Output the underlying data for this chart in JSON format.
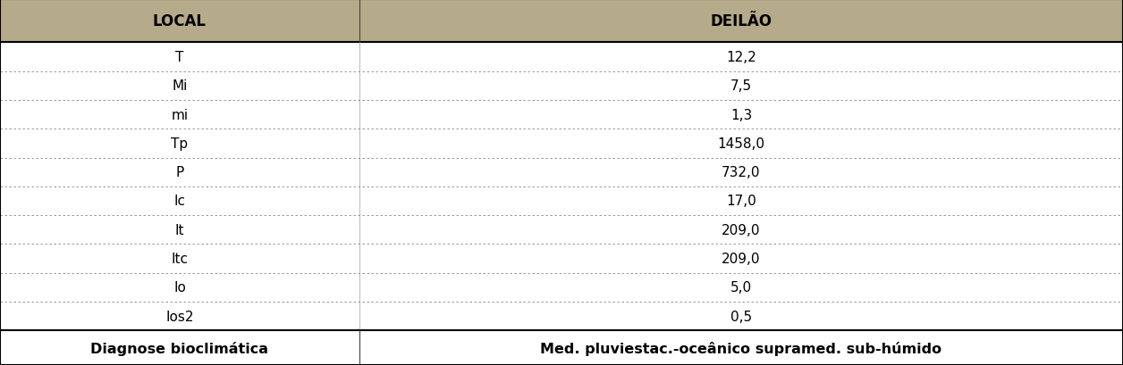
{
  "header": [
    "LOCAL",
    "DEILÃO"
  ],
  "rows": [
    [
      "T",
      "12,2"
    ],
    [
      "Mi",
      "7,5"
    ],
    [
      "mi",
      "1,3"
    ],
    [
      "Tp",
      "1458,0"
    ],
    [
      "P",
      "732,0"
    ],
    [
      "Ic",
      "17,0"
    ],
    [
      "It",
      "209,0"
    ],
    [
      "Itc",
      "209,0"
    ],
    [
      "Io",
      "5,0"
    ],
    [
      "Ios2",
      "0,5"
    ]
  ],
  "footer": [
    "Diagnose bioclimática",
    "Med. pluviestac.-oceânico supramed. sub-húmido"
  ],
  "header_bg": "#b5aa8a",
  "border_color": "#000000",
  "col_split": 0.32,
  "figsize": [
    12.56,
    4.1
  ],
  "dpi": 100,
  "header_fontsize": 12,
  "data_fontsize": 11,
  "footer_fontsize": 11.5
}
